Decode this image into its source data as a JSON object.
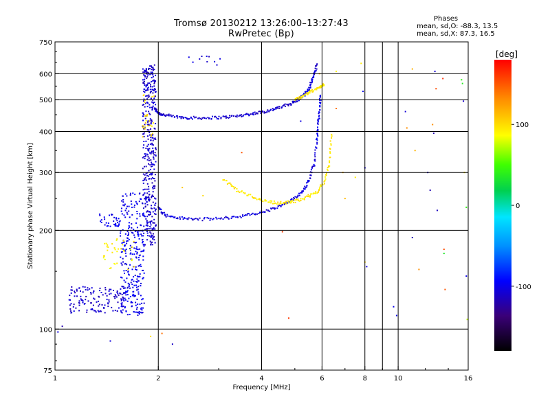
{
  "header": {
    "title": "Tromsø 20130212 13:26:00–13:27:43",
    "subtitle": "RwPretec (Bp)"
  },
  "stats": {
    "title": "Phases",
    "line_o": "mean, sd,O: -88.3, 13.5",
    "line_x": "mean, sd,X:  87.3, 16.5"
  },
  "colorbar": {
    "label": "[deg]",
    "ticks": [
      {
        "value": 100,
        "label": "100"
      },
      {
        "value": 0,
        "label": "0"
      },
      {
        "value": -100,
        "label": "-100"
      }
    ],
    "range": [
      -180,
      180
    ]
  },
  "chart_data": {
    "type": "scatter",
    "title": "Tromsø 20130212 13:26:00–13:27:43",
    "subtitle": "RwPretec (Bp)",
    "xlabel": "Frequency [MHz]",
    "ylabel": "Stationary phase Virtual Height [km]",
    "xscale": "log",
    "yscale": "log",
    "xlim": [
      1,
      16
    ],
    "ylim": [
      75,
      750
    ],
    "grid": true,
    "xticks": [
      {
        "value": 1,
        "label": "1"
      },
      {
        "value": 2,
        "label": "2"
      },
      {
        "value": 4,
        "label": "4"
      },
      {
        "value": 6,
        "label": "6"
      },
      {
        "value": 8,
        "label": "8"
      },
      {
        "value": 10,
        "label": "10"
      },
      {
        "value": 16,
        "label": "16"
      }
    ],
    "yticks": [
      {
        "value": 75,
        "label": "75"
      },
      {
        "value": 100,
        "label": "100"
      },
      {
        "value": 200,
        "label": "200"
      },
      {
        "value": 300,
        "label": "300"
      },
      {
        "value": 400,
        "label": "400"
      },
      {
        "value": 500,
        "label": "500"
      },
      {
        "value": 600,
        "label": "600"
      },
      {
        "value": 750,
        "label": "750"
      }
    ],
    "x_gridlines": [
      2,
      4,
      6,
      8,
      9,
      10
    ],
    "y_gridlines": [
      100,
      200,
      300,
      400,
      500,
      600
    ],
    "color_scale": {
      "variable": "phase",
      "unit": "deg",
      "min": -180,
      "max": 180
    },
    "traces": [
      {
        "x": [
          1.95,
          2.0,
          2.1,
          2.3,
          2.5,
          2.8,
          3.1,
          3.4,
          3.7,
          4.0,
          4.3,
          4.6,
          4.9,
          5.1
        ],
        "y": [
          470,
          455,
          448,
          442,
          440,
          440,
          442,
          446,
          452,
          458,
          466,
          476,
          488,
          500
        ],
        "phase": -110
      },
      {
        "x": [
          5.1,
          5.3,
          5.5,
          5.6,
          5.7,
          5.8
        ],
        "y": [
          500,
          515,
          540,
          570,
          600,
          640
        ],
        "phase": -105
      },
      {
        "x": [
          2.0,
          2.1,
          2.3,
          2.6,
          3.0,
          3.4,
          3.8,
          4.2,
          4.6,
          5.0,
          5.3,
          5.5,
          5.7,
          5.8
        ],
        "y": [
          235,
          222,
          218,
          216,
          217,
          220,
          224,
          230,
          238,
          250,
          265,
          285,
          320,
          380
        ],
        "phase": -105
      },
      {
        "x": [
          5.8,
          5.85,
          5.9,
          5.95
        ],
        "y": [
          380,
          420,
          470,
          520
        ],
        "phase": -100
      },
      {
        "x": [
          3.1,
          3.4,
          3.8,
          4.2,
          4.6,
          5.0,
          5.4,
          5.8,
          6.1,
          6.3,
          6.4
        ],
        "y": [
          285,
          265,
          252,
          244,
          242,
          245,
          252,
          262,
          280,
          320,
          400
        ],
        "phase": 95
      },
      {
        "x": [
          5.0,
          5.3,
          5.6,
          5.9,
          6.1
        ],
        "y": [
          500,
          515,
          530,
          545,
          560
        ],
        "phase": 95
      }
    ],
    "clusters": [
      {
        "x_range": [
          1.8,
          1.97
        ],
        "y_range": [
          180,
          640
        ],
        "count": 420,
        "phase": -110
      },
      {
        "x_range": [
          1.55,
          1.82
        ],
        "y_range": [
          110,
          260
        ],
        "count": 300,
        "phase": -100
      },
      {
        "x_range": [
          1.1,
          1.6
        ],
        "y_range": [
          112,
          135
        ],
        "count": 130,
        "phase": -110
      },
      {
        "x_range": [
          1.35,
          1.55
        ],
        "y_range": [
          205,
          225
        ],
        "count": 35,
        "phase": -100
      },
      {
        "x_range": [
          1.38,
          1.7
        ],
        "y_range": [
          150,
          190
        ],
        "count": 35,
        "phase": 90
      },
      {
        "x_range": [
          1.8,
          1.95
        ],
        "y_range": [
          380,
          520
        ],
        "count": 25,
        "phase": 100
      },
      {
        "x_range": [
          2.4,
          3.1
        ],
        "y_range": [
          620,
          680
        ],
        "count": 10,
        "phase": -110
      }
    ],
    "scattered": [
      {
        "x": 1.02,
        "y": 98,
        "phase": -110
      },
      {
        "x": 1.05,
        "y": 102,
        "phase": -110
      },
      {
        "x": 1.45,
        "y": 92,
        "phase": -110
      },
      {
        "x": 1.9,
        "y": 95,
        "phase": 100
      },
      {
        "x": 2.05,
        "y": 97,
        "phase": 140
      },
      {
        "x": 2.2,
        "y": 90,
        "phase": -110
      },
      {
        "x": 2.35,
        "y": 270,
        "phase": 100
      },
      {
        "x": 2.7,
        "y": 255,
        "phase": 110
      },
      {
        "x": 3.5,
        "y": 345,
        "phase": 160
      },
      {
        "x": 4.6,
        "y": 198,
        "phase": 150
      },
      {
        "x": 4.8,
        "y": 108,
        "phase": 160
      },
      {
        "x": 5.2,
        "y": 430,
        "phase": -100
      },
      {
        "x": 5.9,
        "y": 600,
        "phase": 110
      },
      {
        "x": 6.6,
        "y": 610,
        "phase": 100
      },
      {
        "x": 6.6,
        "y": 470,
        "phase": 130
      },
      {
        "x": 6.9,
        "y": 300,
        "phase": 120
      },
      {
        "x": 7.0,
        "y": 250,
        "phase": 110
      },
      {
        "x": 7.5,
        "y": 290,
        "phase": 95
      },
      {
        "x": 7.8,
        "y": 645,
        "phase": 100
      },
      {
        "x": 7.9,
        "y": 530,
        "phase": -110
      },
      {
        "x": 8.0,
        "y": 310,
        "phase": -110
      },
      {
        "x": 8.0,
        "y": 160,
        "phase": 110
      },
      {
        "x": 8.1,
        "y": 155,
        "phase": -110
      },
      {
        "x": 9.7,
        "y": 117,
        "phase": -110
      },
      {
        "x": 9.9,
        "y": 110,
        "phase": -110
      },
      {
        "x": 10.5,
        "y": 460,
        "phase": -110
      },
      {
        "x": 10.6,
        "y": 410,
        "phase": 130
      },
      {
        "x": 11.0,
        "y": 620,
        "phase": 110
      },
      {
        "x": 11.2,
        "y": 350,
        "phase": 110
      },
      {
        "x": 11.0,
        "y": 190,
        "phase": -110
      },
      {
        "x": 11.5,
        "y": 152,
        "phase": 130
      },
      {
        "x": 12.2,
        "y": 300,
        "phase": -110
      },
      {
        "x": 12.4,
        "y": 265,
        "phase": -110
      },
      {
        "x": 12.6,
        "y": 420,
        "phase": 130
      },
      {
        "x": 12.7,
        "y": 395,
        "phase": -110
      },
      {
        "x": 12.8,
        "y": 610,
        "phase": -110
      },
      {
        "x": 12.9,
        "y": 540,
        "phase": 150
      },
      {
        "x": 13.0,
        "y": 230,
        "phase": -110
      },
      {
        "x": 13.5,
        "y": 580,
        "phase": 160
      },
      {
        "x": 13.6,
        "y": 175,
        "phase": 160
      },
      {
        "x": 13.6,
        "y": 170,
        "phase": 40
      },
      {
        "x": 13.7,
        "y": 132,
        "phase": 150
      },
      {
        "x": 15.3,
        "y": 575,
        "phase": 50
      },
      {
        "x": 15.4,
        "y": 560,
        "phase": 40
      },
      {
        "x": 15.5,
        "y": 495,
        "phase": -110
      },
      {
        "x": 15.6,
        "y": 300,
        "phase": 100
      },
      {
        "x": 15.8,
        "y": 235,
        "phase": 40
      },
      {
        "x": 15.8,
        "y": 145,
        "phase": -110
      },
      {
        "x": 15.9,
        "y": 107,
        "phase": 70
      }
    ]
  }
}
